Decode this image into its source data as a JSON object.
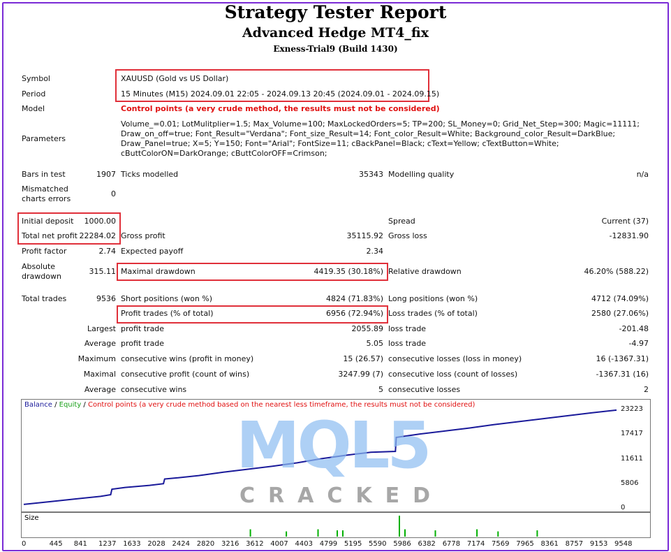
{
  "report": {
    "title": "Strategy Tester Report",
    "ea_name": "Advanced Hedge MT4_fix",
    "server": "Exness-Trial9 (Build 1430)"
  },
  "labels": {
    "symbol": "Symbol",
    "period": "Period",
    "model": "Model",
    "parameters": "Parameters",
    "bars_in_test": "Bars in test",
    "ticks_modelled": "Ticks modelled",
    "modelling_quality": "Modelling quality",
    "mismatched_1": "Mismatched",
    "mismatched_2": "charts errors",
    "initial_deposit": "Initial deposit",
    "spread": "Spread",
    "total_net_profit": "Total net profit",
    "gross_profit": "Gross profit",
    "gross_loss": "Gross loss",
    "profit_factor": "Profit factor",
    "expected_payoff": "Expected payoff",
    "absolute_1": "Absolute",
    "absolute_2": "drawdown",
    "maximal_drawdown": "Maximal drawdown",
    "relative_drawdown": "Relative drawdown",
    "total_trades": "Total trades",
    "short_positions": "Short positions (won %)",
    "long_positions": "Long positions (won %)",
    "profit_trades": "Profit trades (% of total)",
    "loss_trades": "Loss trades (% of total)",
    "largest": "Largest",
    "average": "Average",
    "maximum": "Maximum",
    "maximal": "Maximal",
    "profit_trade": "profit trade",
    "loss_trade": "loss trade",
    "cons_wins_money": "consecutive wins (profit in money)",
    "cons_losses_money": "consecutive losses (loss in money)",
    "cons_profit_count": "consecutive profit (count of wins)",
    "cons_loss_count": "consecutive loss (count of losses)",
    "cons_wins": "consecutive wins",
    "cons_losses": "consecutive losses"
  },
  "values": {
    "symbol": "XAUUSD (Gold vs US Dollar)",
    "period": "15 Minutes (M15) 2024.09.01 22:05 - 2024.09.13 20:45 (2024.09.01 - 2024.09.15)",
    "model": "Control points (a very crude method, the results must not be considered)",
    "parameters": "Volume_=0.01; LotMulitplier=1.5; Max_Volume=100; MaxLockedOrders=5; TP=200; SL_Money=0; Grid_Net_Step=300; Magic=11111; Draw_on_off=true; Font_Result=\"Verdana\"; Font_size_Result=14; Font_color_Result=White; Background_color_Result=DarkBlue; Draw_Panel=true; X=5; Y=150; Font=\"Arial\"; FontSize=11; cBackPanel=Black; cText=Yellow; cTextButton=White; cButtColorON=DarkOrange; cButtColorOFF=Crimson;",
    "bars_in_test": "1907",
    "ticks_modelled": "35343",
    "modelling_quality": "n/a",
    "mismatched": "0",
    "initial_deposit": "1000.00",
    "spread": "Current (37)",
    "total_net_profit": "22284.02",
    "gross_profit": "35115.92",
    "gross_loss": "-12831.90",
    "profit_factor": "2.74",
    "expected_payoff": "2.34",
    "absolute_drawdown": "315.11",
    "maximal_drawdown": "4419.35 (30.18%)",
    "relative_drawdown": "46.20% (588.22)",
    "total_trades": "9536",
    "short_positions": "4824 (71.83%)",
    "long_positions": "4712 (74.09%)",
    "profit_trades": "6956 (72.94%)",
    "loss_trades": "2580 (27.06%)",
    "largest_profit": "2055.89",
    "largest_loss": "-201.48",
    "average_profit": "5.05",
    "average_loss": "-4.97",
    "max_cons_wins": "15 (26.57)",
    "max_cons_losses": "16 (-1367.31)",
    "maximal_cons_profit": "3247.99 (7)",
    "maximal_cons_loss": "-1367.31 (16)",
    "avg_cons_wins": "5",
    "avg_cons_losses": "2"
  },
  "chart": {
    "legend_balance": "Balance",
    "legend_sep1": " / ",
    "legend_equity": "Equity",
    "legend_sep2": " / ",
    "legend_note": "Control points (a very crude method based on the nearest less timeframe, the results must not be considered)",
    "size_label": "Size",
    "colors": {
      "balance": "#1a1a9a",
      "equity": "#1aa01a",
      "note": "#e01010",
      "size_bar": "#00b000"
    }
  },
  "watermark": {
    "logo": "MQL5",
    "text": "CRACKED"
  },
  "chart_data": {
    "type": "line",
    "series": [
      {
        "name": "Balance",
        "x": [
          0,
          445,
          841,
          1237,
          1400,
          1420,
          1633,
          2028,
          2250,
          2270,
          2424,
          2820,
          3216,
          3612,
          4007,
          4403,
          4799,
          5195,
          5590,
          5986,
          6000,
          6382,
          6778,
          7174,
          7569,
          7965,
          8361,
          8757,
          9153,
          9548,
          9536
        ],
        "y": [
          1000,
          1700,
          2300,
          2900,
          3300,
          4600,
          5000,
          5500,
          5900,
          7000,
          7200,
          7800,
          8600,
          9300,
          10000,
          10800,
          11800,
          12600,
          13300,
          13500,
          16800,
          17600,
          18300,
          19000,
          19800,
          20500,
          21200,
          21900,
          22600,
          23223,
          23223
        ]
      }
    ],
    "x_ticks": [
      "0",
      "445",
      "841",
      "1237",
      "1633",
      "2028",
      "2424",
      "2820",
      "3216",
      "3612",
      "4007",
      "4403",
      "4799",
      "5195",
      "5590",
      "5986",
      "6382",
      "6778",
      "7174",
      "7569",
      "7965",
      "8361",
      "8757",
      "9153",
      "9548"
    ],
    "y_ticks": [
      "23223",
      "17417",
      "11611",
      "5806",
      "0"
    ],
    "ylim": [
      0,
      23223
    ],
    "size_bars": [
      {
        "x": 3650,
        "v": 0.35
      },
      {
        "x": 4230,
        "v": 0.25
      },
      {
        "x": 4740,
        "v": 0.35
      },
      {
        "x": 5050,
        "v": 0.3
      },
      {
        "x": 5140,
        "v": 0.3
      },
      {
        "x": 6050,
        "v": 1.0
      },
      {
        "x": 6140,
        "v": 0.35
      },
      {
        "x": 6630,
        "v": 0.3
      },
      {
        "x": 7300,
        "v": 0.35
      },
      {
        "x": 8270,
        "v": 0.3
      },
      {
        "x": 7640,
        "v": 0.25
      }
    ]
  }
}
